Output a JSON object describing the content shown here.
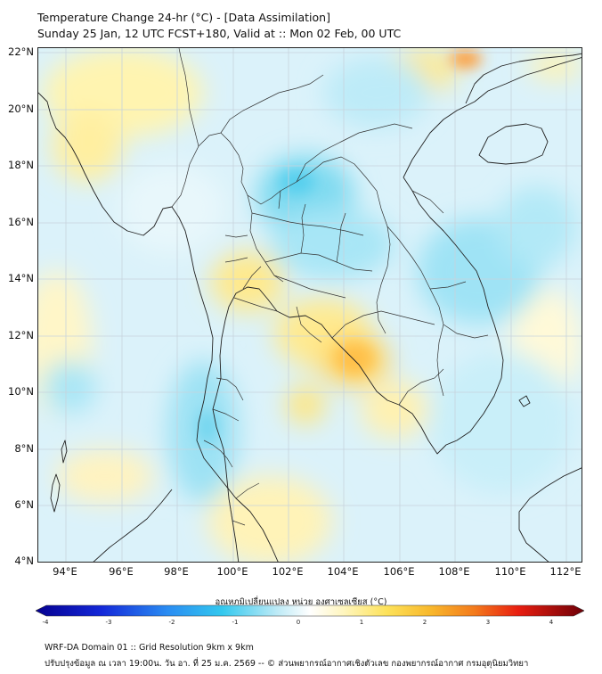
{
  "header": {
    "title_line1": "Temperature Change 24-hr (°C) - [Data Assimilation]",
    "title_line2": "Sunday 25 Jan, 12 UTC FCST+180, Valid at :: Mon 02 Feb, 00 UTC"
  },
  "map": {
    "lat_labels": [
      "22°N",
      "20°N",
      "18°N",
      "16°N",
      "14°N",
      "12°N",
      "10°N",
      "8°N",
      "6°N",
      "4°N"
    ],
    "lon_labels": [
      "94°E",
      "96°E",
      "98°E",
      "100°E",
      "102°E",
      "104°E",
      "106°E",
      "108°E",
      "110°E",
      "112°E"
    ],
    "lat_range": [
      4,
      22.2
    ],
    "lon_range": [
      93,
      112.7
    ]
  },
  "colorbar": {
    "title": "อุณหภูมิเปลี่ยนแปลง หน่วย องศาเซลเซียส (°C)",
    "min": -4,
    "max": 4,
    "tick_labels": [
      "-4",
      "-3",
      "-2",
      "-1",
      "0",
      "1",
      "2",
      "3",
      "4"
    ]
  },
  "footer": {
    "line1": "WRF-DA Domain 01 :: Grid Resolution 9km x 9km",
    "line2": "ปรับปรุงข้อมูล ณ เวลา 19:00น. วัน อา. ที่ 25 ม.ค. 2569 -- © ส่วนพยากรณ์อากาศเชิงตัวเลข กองพยากรณ์อากาศ กรมอุตุนิยมวิทยา"
  }
}
